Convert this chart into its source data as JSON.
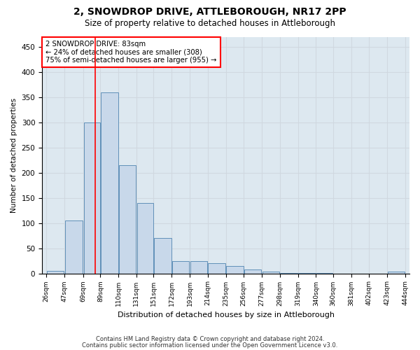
{
  "title": "2, SNOWDROP DRIVE, ATTLEBOROUGH, NR17 2PP",
  "subtitle": "Size of property relative to detached houses in Attleborough",
  "xlabel": "Distribution of detached houses by size in Attleborough",
  "ylabel": "Number of detached properties",
  "footer1": "Contains HM Land Registry data © Crown copyright and database right 2024.",
  "footer2": "Contains public sector information licensed under the Open Government Licence v3.0.",
  "bin_edges": [
    26,
    47,
    69,
    89,
    110,
    131,
    151,
    172,
    193,
    214,
    235,
    256,
    277,
    298,
    319,
    340,
    360,
    381,
    402,
    423,
    444
  ],
  "bar_heights": [
    5,
    105,
    300,
    360,
    215,
    140,
    70,
    25,
    25,
    20,
    15,
    8,
    3,
    1,
    1,
    1,
    0,
    0,
    0,
    3
  ],
  "bar_color": "#c8d8ea",
  "bar_edge_color": "#6090b8",
  "property_size": 83,
  "annotation_text1": "2 SNOWDROP DRIVE: 83sqm",
  "annotation_text2": "← 24% of detached houses are smaller (308)",
  "annotation_text3": "75% of semi-detached houses are larger (955) →",
  "red_line_x": 83,
  "ylim": [
    0,
    470
  ],
  "yticks": [
    0,
    50,
    100,
    150,
    200,
    250,
    300,
    350,
    400,
    450
  ],
  "grid_color": "#d0d8e0",
  "bg_color": "#dde8f0"
}
